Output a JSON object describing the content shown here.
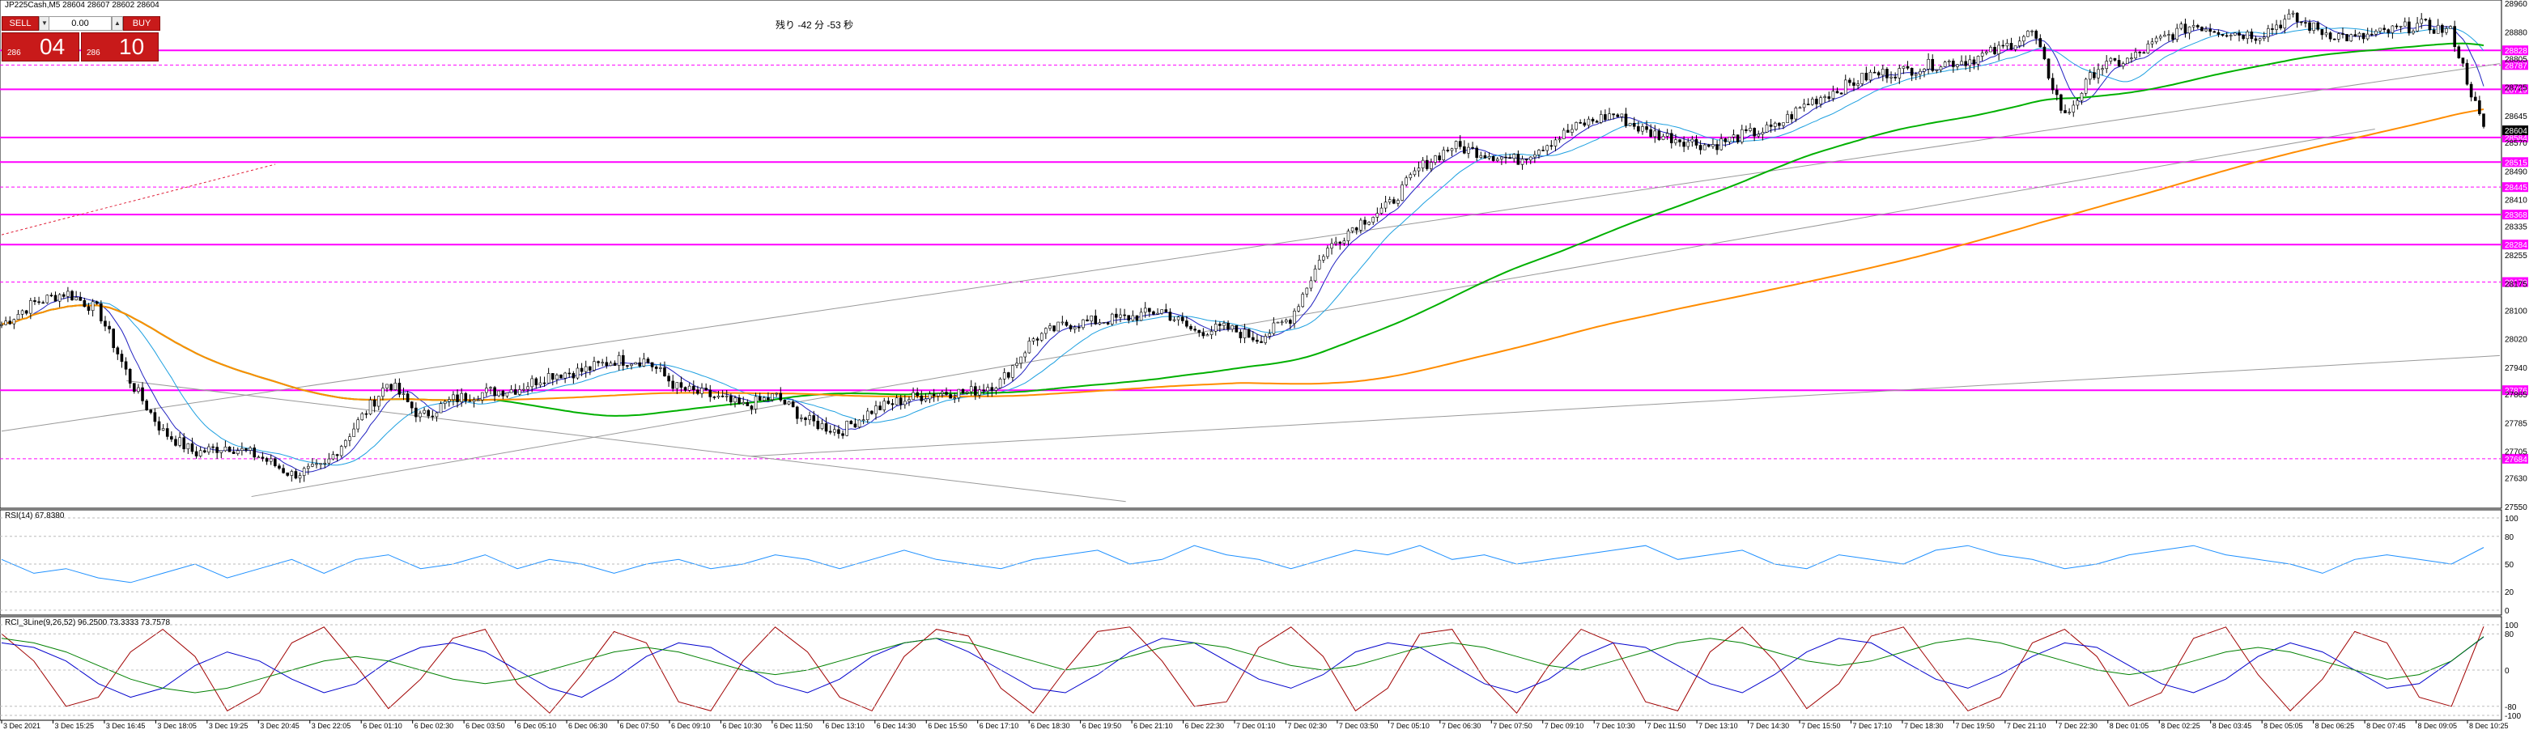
{
  "window": {
    "title": "JP225Cash,M5  28604 28607 28602 28604",
    "countdown": "残り  -42 分  -53 秒"
  },
  "trade_panel": {
    "sell_label": "SELL",
    "buy_label": "BUY",
    "lot_value": "0.00",
    "sell_small": "286",
    "sell_big": "04",
    "buy_small": "286",
    "buy_big": "10"
  },
  "indicators": {
    "rsi_label": "RSI(14) 67.8380",
    "stoch_label": "RCI_3Line(9,26,52) 96.2500 73.3333 73.7578"
  },
  "colors": {
    "candle": "#000000",
    "rsi_line": "#1e90ff",
    "rci_short": "#a00000",
    "rci_mid": "#0000cd",
    "rci_long": "#008000",
    "ma_long": "#00b000",
    "ma_very_long": "#ff8c00",
    "level_line": "#ff00ff",
    "highlight_label": "#ff00ff",
    "current_price_label": "#000000"
  },
  "chart_data": [
    {
      "type": "line",
      "panel": "price",
      "symbol": "JP225Cash",
      "timeframe": "M5",
      "ylim": [
        27550,
        28960
      ],
      "y_ticks": [
        28960,
        28880,
        28805,
        28725,
        28645,
        28570,
        28490,
        28410,
        28335,
        28255,
        28175,
        28100,
        28020,
        27940,
        27865,
        27785,
        27705,
        27630,
        27550
      ],
      "x_tick_labels": [
        "3 Dec 2021",
        "3 Dec 15:25",
        "3 Dec 16:45",
        "3 Dec 18:05",
        "3 Dec 19:25",
        "3 Dec 20:45",
        "3 Dec 22:05",
        "6 Dec 01:10",
        "6 Dec 02:30",
        "6 Dec 03:50",
        "6 Dec 05:10",
        "6 Dec 06:30",
        "6 Dec 07:50",
        "6 Dec 09:10",
        "6 Dec 10:30",
        "6 Dec 11:50",
        "6 Dec 13:10",
        "6 Dec 14:30",
        "6 Dec 15:50",
        "6 Dec 17:10",
        "6 Dec 18:30",
        "6 Dec 19:50",
        "6 Dec 21:10",
        "6 Dec 22:30",
        "7 Dec 01:10",
        "7 Dec 02:30",
        "7 Dec 03:50",
        "7 Dec 05:10",
        "7 Dec 06:30",
        "7 Dec 07:50",
        "7 Dec 09:10",
        "7 Dec 10:30",
        "7 Dec 11:50",
        "7 Dec 13:10",
        "7 Dec 14:30",
        "7 Dec 15:50",
        "7 Dec 17:10",
        "7 Dec 18:30",
        "7 Dec 19:50",
        "7 Dec 21:10",
        "7 Dec 22:30",
        "8 Dec 01:05",
        "8 Dec 02:25",
        "8 Dec 03:45",
        "8 Dec 05:05",
        "8 Dec 06:25",
        "8 Dec 07:45",
        "8 Dec 09:05",
        "8 Dec 10:25"
      ],
      "price_path": [
        28060,
        28120,
        28150,
        28100,
        27900,
        27760,
        27700,
        27720,
        27690,
        27640,
        27660,
        27780,
        27900,
        27800,
        27850,
        27870,
        27880,
        27920,
        27930,
        27960,
        27960,
        27880,
        27860,
        27830,
        27860,
        27790,
        27760,
        27820,
        27850,
        27870,
        27870,
        27900,
        28020,
        28060,
        28070,
        28080,
        28100,
        28040,
        28050,
        28020,
        28080,
        28260,
        28340,
        28390,
        28500,
        28560,
        28540,
        28520,
        28570,
        28620,
        28650,
        28600,
        28580,
        28560,
        28590,
        28610,
        28680,
        28720,
        28760,
        28770,
        28790,
        28800,
        28830,
        28880,
        28640,
        28780,
        28800,
        28860,
        28900,
        28880,
        28870,
        28920,
        28880,
        28860,
        28880,
        28900,
        28880,
        28604
      ],
      "current_price_label": "28604",
      "level_lines": [
        {
          "price": 28828,
          "label": "28828",
          "style": "solid"
        },
        {
          "price": 28787,
          "label": "28787",
          "style": "dashed"
        },
        {
          "price": 28719,
          "label": "28719",
          "style": "solid"
        },
        {
          "price": 28584,
          "label": "28584",
          "style": "solid"
        },
        {
          "price": 28515,
          "label": "28515",
          "style": "solid"
        },
        {
          "price": 28445,
          "label": "28445",
          "style": "dashed"
        },
        {
          "price": 28368,
          "label": "28368",
          "style": "solid"
        },
        {
          "price": 28284,
          "label": "28284",
          "style": "solid"
        },
        {
          "price": 28179,
          "label": "28179",
          "style": "dashed"
        },
        {
          "price": 27876,
          "label": "27876",
          "style": "solid"
        },
        {
          "price": 27684,
          "label": "27684",
          "style": "dashed"
        }
      ]
    },
    {
      "type": "line",
      "panel": "rsi",
      "name": "RSI(14)",
      "ylim": [
        0,
        100
      ],
      "y_ticks": [
        100,
        80,
        50,
        20,
        0
      ],
      "values": [
        55,
        40,
        45,
        35,
        30,
        40,
        50,
        35,
        45,
        55,
        40,
        55,
        60,
        45,
        50,
        60,
        45,
        55,
        50,
        40,
        50,
        55,
        45,
        50,
        60,
        55,
        45,
        55,
        65,
        55,
        50,
        45,
        55,
        60,
        65,
        50,
        55,
        70,
        60,
        55,
        45,
        55,
        65,
        60,
        70,
        55,
        60,
        50,
        55,
        60,
        65,
        70,
        55,
        60,
        65,
        50,
        45,
        60,
        55,
        50,
        65,
        70,
        60,
        55,
        45,
        50,
        60,
        65,
        70,
        60,
        55,
        50,
        40,
        55,
        60,
        55,
        50,
        68
      ]
    },
    {
      "type": "line",
      "panel": "rci",
      "ylim": [
        -100,
        100
      ],
      "y_ticks": [
        100,
        80,
        0,
        -80,
        -100
      ],
      "series": [
        {
          "name": "short",
          "values": [
            80,
            20,
            -80,
            -60,
            40,
            90,
            30,
            -90,
            -50,
            60,
            95,
            10,
            -85,
            -20,
            70,
            90,
            -30,
            -95,
            -10,
            85,
            60,
            -70,
            -90,
            20,
            95,
            40,
            -60,
            -90,
            30,
            90,
            75,
            -40,
            -95,
            0,
            85,
            95,
            20,
            -80,
            -70,
            50,
            95,
            30,
            -90,
            -40,
            80,
            90,
            -20,
            -95,
            10,
            90,
            60,
            -70,
            -90,
            40,
            95,
            20,
            -85,
            -30,
            75,
            95,
            0,
            -90,
            -60,
            60,
            90,
            30,
            -80,
            -50,
            70,
            95,
            -10,
            -90,
            -20,
            85,
            60,
            -60,
            -80,
            96
          ]
        },
        {
          "name": "mid",
          "values": [
            60,
            50,
            20,
            -30,
            -60,
            -40,
            10,
            40,
            20,
            -20,
            -50,
            -30,
            20,
            50,
            60,
            40,
            0,
            -40,
            -60,
            -20,
            30,
            60,
            50,
            10,
            -30,
            -50,
            -20,
            30,
            60,
            70,
            40,
            0,
            -40,
            -50,
            -10,
            40,
            70,
            60,
            20,
            -20,
            -40,
            -10,
            40,
            60,
            50,
            10,
            -30,
            -50,
            -20,
            30,
            60,
            50,
            10,
            -30,
            -50,
            -10,
            40,
            70,
            60,
            20,
            -20,
            -40,
            -10,
            30,
            60,
            50,
            10,
            -30,
            -50,
            -20,
            30,
            60,
            40,
            0,
            -40,
            -30,
            20,
            73
          ]
        },
        {
          "name": "long",
          "values": [
            70,
            60,
            40,
            10,
            -20,
            -40,
            -50,
            -40,
            -20,
            0,
            20,
            30,
            20,
            0,
            -20,
            -30,
            -20,
            0,
            20,
            40,
            50,
            40,
            20,
            0,
            -10,
            0,
            20,
            40,
            60,
            70,
            60,
            40,
            20,
            0,
            10,
            30,
            50,
            60,
            50,
            30,
            10,
            0,
            10,
            30,
            50,
            60,
            50,
            30,
            10,
            0,
            20,
            40,
            60,
            70,
            60,
            40,
            20,
            10,
            20,
            40,
            60,
            70,
            60,
            40,
            20,
            0,
            -10,
            0,
            20,
            40,
            50,
            40,
            20,
            0,
            -20,
            -10,
            20,
            74
          ]
        }
      ]
    }
  ]
}
